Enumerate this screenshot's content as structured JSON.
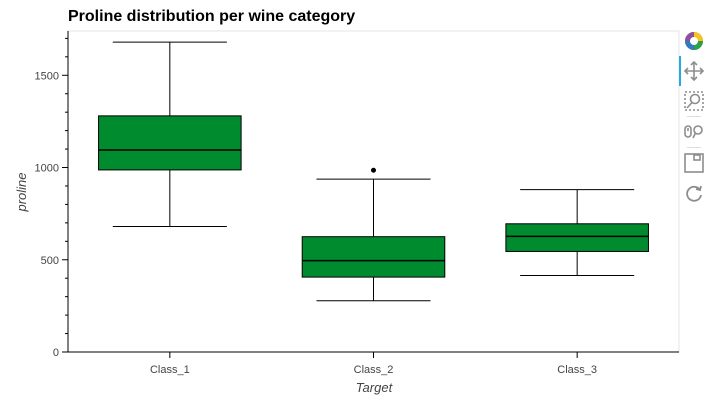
{
  "chart_data": {
    "type": "box",
    "title": "Proline distribution per wine category",
    "xlabel": "Target",
    "ylabel": "proline",
    "categories": [
      "Class_1",
      "Class_2",
      "Class_3"
    ],
    "ylim": [
      0,
      1740
    ],
    "yticks": [
      0,
      500,
      1000,
      1500
    ],
    "ytick_labels": [
      "0",
      "500",
      "1000",
      "1500"
    ],
    "boxes": [
      {
        "category": "Class_1",
        "whisker_low": 680,
        "q1": 987,
        "median": 1095,
        "q3": 1280,
        "whisker_high": 1680,
        "outliers": []
      },
      {
        "category": "Class_2",
        "whisker_low": 278,
        "q1": 406,
        "median": 495,
        "q3": 625,
        "whisker_high": 937,
        "outliers": [
          985
        ]
      },
      {
        "category": "Class_3",
        "whisker_low": 415,
        "q1": 545,
        "median": 627,
        "q3": 695,
        "whisker_high": 880,
        "outliers": []
      }
    ],
    "box_color": "#008b2e",
    "grid": false,
    "legend": "none"
  },
  "toolbar": {
    "tools": [
      "bokeh-logo-icon",
      "pan-icon",
      "box-zoom-icon",
      "wheel-zoom-icon",
      "save-icon",
      "reset-icon"
    ],
    "active_color": "#26aae1"
  }
}
